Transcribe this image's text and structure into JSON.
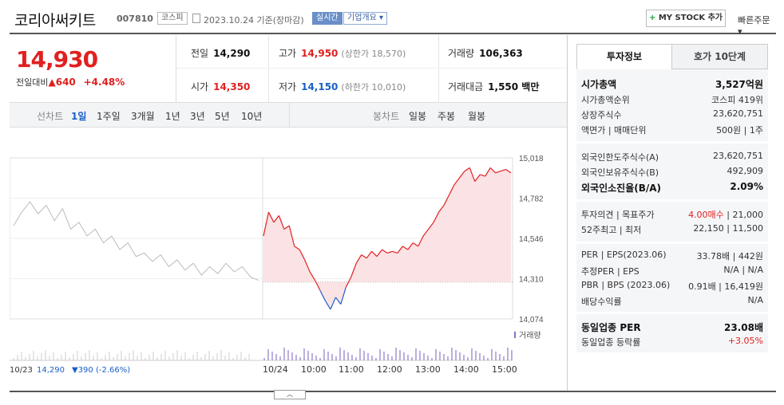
{
  "header": {
    "stock_name": "코리아써키트",
    "stock_code": "007810",
    "market_badge": "코스피",
    "date_text": "2023.10.24 기준(장마감)",
    "realtime_badge": "실시간",
    "company_badge": "기업개요 ▾",
    "mystock_plus": "+",
    "mystock_label": "MY STOCK 추가",
    "quick_order": "빠른주문 ▾"
  },
  "price": {
    "current": "14,930",
    "diff_label": "전일대비",
    "diff_arrow": "▲",
    "diff_value": "640",
    "diff_pct": "+4.48%"
  },
  "info": {
    "prev_label": "전일",
    "prev_value": "14,290",
    "high_label": "고가",
    "high_value": "14,950",
    "upper_limit": "(상한가 18,570)",
    "volume_label": "거래량",
    "volume_value": "106,363",
    "open_label": "시가",
    "open_value": "14,350",
    "low_label": "저가",
    "low_value": "14,150",
    "lower_limit": "(하한가 10,010)",
    "amount_label": "거래대금",
    "amount_value": "1,550 백만"
  },
  "periods": {
    "line_label": "선차트",
    "items": [
      "1일",
      "1주일",
      "3개월",
      "1년",
      "3년",
      "5년",
      "10년"
    ],
    "selected": "1일",
    "candle_label": "봉차트",
    "candle_items": [
      "일봉",
      "주봉",
      "월봉"
    ]
  },
  "chart_data": {
    "type": "line",
    "y_ticks": [
      "15,018",
      "14,782",
      "14,546",
      "14,310",
      "14,074"
    ],
    "ylim": [
      14074,
      15018
    ],
    "x_ticks": [
      "10/24",
      "10:00",
      "11:00",
      "12:00",
      "13:00",
      "14:00",
      "15:00"
    ],
    "prev_close": 14290,
    "volume_label": "거래량",
    "prev_day_caption": "10/23",
    "prev_day_close": "14,290",
    "prev_day_change": "▼390 (-2.66%)",
    "prev_day_prices": [
      14620,
      14700,
      14760,
      14690,
      14740,
      14650,
      14720,
      14600,
      14640,
      14560,
      14600,
      14520,
      14560,
      14480,
      14520,
      14440,
      14460,
      14410,
      14450,
      14380,
      14420,
      14360,
      14400,
      14330,
      14380,
      14340,
      14400,
      14350,
      14380,
      14320,
      14300
    ],
    "today_prices": [
      14560,
      14700,
      14640,
      14680,
      14600,
      14620,
      14500,
      14480,
      14420,
      14350,
      14300,
      14240,
      14180,
      14130,
      14200,
      14160,
      14260,
      14320,
      14400,
      14450,
      14430,
      14470,
      14440,
      14480,
      14460,
      14470,
      14460,
      14500,
      14480,
      14520,
      14500,
      14560,
      14600,
      14640,
      14700,
      14740,
      14800,
      14860,
      14900,
      14940,
      14960,
      14880,
      14920,
      14910,
      14960,
      14930,
      14940,
      14950,
      14930
    ]
  },
  "tabs": {
    "active": "투자정보",
    "inactive": "호가 10단계"
  },
  "side": {
    "cap_label": "시가총액",
    "cap_value": "3,527억원",
    "cap_rank_label": "시가총액순위",
    "cap_rank_value": "코스피 419위",
    "shares_label": "상장주식수",
    "shares_value": "23,620,751",
    "par_label": "액면가 | 매매단위",
    "par_value": "500원 | 1주",
    "foreign_limit_label": "외국인한도주식수(A)",
    "foreign_limit_value": "23,620,751",
    "foreign_hold_label": "외국인보유주식수(B)",
    "foreign_hold_value": "492,909",
    "foreign_ratio_label": "외국인소진율(B/A)",
    "foreign_ratio_value": "2.09%",
    "opinion_label": "투자의견 | 목표주가",
    "opinion_value": "4.00매수",
    "target_value": "| 21,000",
    "w52_label": "52주최고 | 최저",
    "w52_value": "22,150 | 11,500",
    "per_label": "PER | EPS(2023.06)",
    "per_value": "33.78배 | 442원",
    "est_per_label": "추정PER | EPS",
    "est_per_value": "N/A | N/A",
    "pbr_label": "PBR | BPS (2023.06)",
    "pbr_value": "0.91배 | 16,419원",
    "div_label": "배당수익률",
    "div_value": "N/A",
    "ind_per_label": "동일업종 PER",
    "ind_per_value": "23.08배",
    "ind_rate_label": "동일업종 등락률",
    "ind_rate_value": "+3.05%"
  }
}
